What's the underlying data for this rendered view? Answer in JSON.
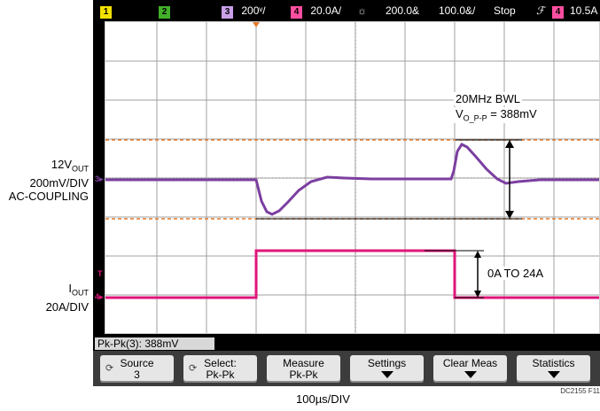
{
  "status": {
    "ch1": "1",
    "ch2": "2",
    "ch3": "3",
    "ch3_scale": "200ᵛ/",
    "ch4": "4",
    "ch4_scale": "20.0A/",
    "trigger_symbol": "☼",
    "timebase": "200.0&",
    "delay": "100.0&/",
    "run_state": "Stop",
    "slope_symbol": "ℱ",
    "trig_ch": "4",
    "trig_level": "10.5A"
  },
  "left_labels": {
    "voltage_line1": "12V",
    "voltage_line1_sub": "OUT",
    "voltage_line2": "200mV/DIV",
    "voltage_line3": "AC-COUPLING",
    "current_line1": "I",
    "current_line1_sub": "OUT",
    "current_line2": "20A/DIV"
  },
  "annotations": {
    "bwl": "20MHz BWL",
    "vpp_prefix": "V",
    "vpp_sub": "O_P-P",
    "vpp_value": " = 388mV",
    "step": "0A TO 24A"
  },
  "markers": {
    "ch3": "3",
    "ch4": "4",
    "trigger": "T"
  },
  "measurement": {
    "text": "Pk-Pk(3): 388mV"
  },
  "softkeys": [
    {
      "line1": "Source",
      "line2": "3"
    },
    {
      "line1": "Select:",
      "line2": "Pk-Pk"
    },
    {
      "line1": "Measure",
      "line2": "Pk-Pk"
    },
    {
      "line1": "Settings",
      "line2": ""
    },
    {
      "line1": "Clear Meas",
      "line2": ""
    },
    {
      "line1": "Statistics",
      "line2": ""
    }
  ],
  "timebase_label": "100µs/DIV",
  "figure_id": "DC2155 F11",
  "colors": {
    "ch3": "#7b3fa0",
    "ch4": "#e0157a",
    "ch1_box": "#f2e200",
    "ch2_box": "#43b02a",
    "ch3_box": "#c9a0e8",
    "ch4_box": "#ff4fa0",
    "cursor": "#e07a2e",
    "grid": "#9a9a9a"
  }
}
